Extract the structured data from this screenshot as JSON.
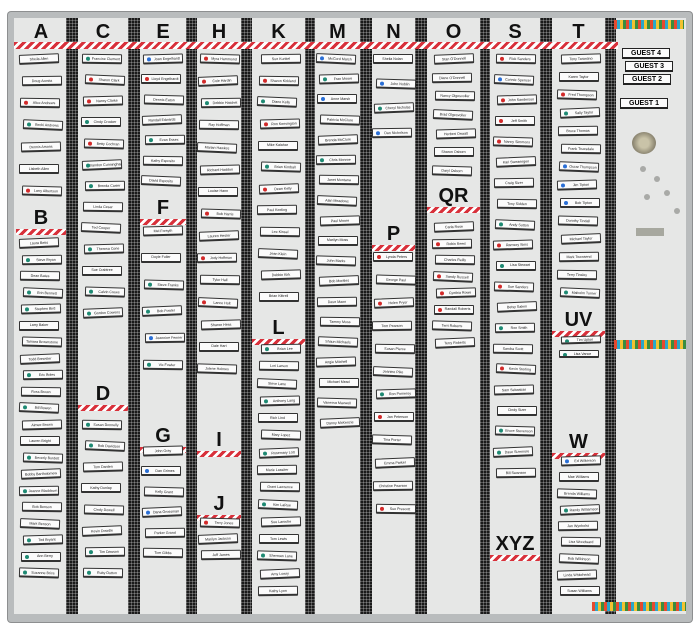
{
  "colors": {
    "red_dot": "#d22a2a",
    "teal_dot": "#1e8a73",
    "blue_dot": "#2a6fd6",
    "tape_red": "#d8313b"
  },
  "columns": [
    {
      "sections": [
        {
          "letter": "A",
          "names": [
            [
              "Sheila Allen",
              ""
            ],
            [
              "Doug Acosta",
              ""
            ],
            [
              "Alice Andrews",
              "red"
            ],
            [
              "Becki Andrews",
              "teal"
            ],
            [
              "Dennis Arsons",
              ""
            ],
            [
              "Lisbeth Allen",
              ""
            ],
            [
              "Larry Albertson",
              "red"
            ]
          ]
        },
        {
          "letter": "B",
          "names": [
            [
              "Laura Betts",
              ""
            ],
            [
              "Steve Bryan",
              "teal"
            ],
            [
              "Dean Bates",
              ""
            ],
            [
              "Erin Bennett",
              "teal"
            ],
            [
              "Stephen Bird",
              "teal"
            ],
            [
              "Larry Baker",
              ""
            ],
            [
              "Tamara Brownstone",
              ""
            ],
            [
              "Todd Brewster",
              ""
            ],
            [
              "Eric Boles",
              "teal"
            ],
            [
              "Ross Brown",
              ""
            ],
            [
              "Bill Bowen",
              "teal"
            ],
            [
              "Aimee Brown",
              ""
            ],
            [
              "Lauren Bright",
              ""
            ],
            [
              "Beverly Burdett",
              "teal"
            ],
            [
              "Bobby Bartholomew",
              ""
            ],
            [
              "Jeanne Blackburn",
              "teal"
            ],
            [
              "Bob Benson",
              ""
            ],
            [
              "Mark Benson",
              ""
            ],
            [
              "Ted Bryant",
              "teal"
            ],
            [
              "Ann Berry",
              "teal"
            ],
            [
              "Suzanne Brice",
              "teal"
            ]
          ]
        }
      ]
    },
    {
      "sections": [
        {
          "letter": "C",
          "names": [
            [
              "Francine Clement",
              "teal"
            ],
            [
              "Sharon Clark",
              "red"
            ],
            [
              "Nancy Clarke",
              "red"
            ],
            [
              "Cindy Crocker",
              "teal"
            ],
            [
              "Betty Cochran",
              "red"
            ],
            [
              "Brandon Cunningham",
              "teal"
            ],
            [
              "Brenda Carter",
              "teal"
            ],
            [
              "Linda Cesar",
              ""
            ],
            [
              "Ted Cooper",
              ""
            ],
            [
              "Theresa Cone",
              "teal"
            ],
            [
              "Sue Crabtree",
              ""
            ],
            [
              "Calvin Crews",
              "teal"
            ],
            [
              "Gordon Cowens",
              "teal"
            ]
          ]
        },
        {
          "letter": "D",
          "names": [
            [
              "Susan Donnelly",
              "teal"
            ],
            [
              "Bob Davidson",
              "teal"
            ],
            [
              "Tom Darden",
              ""
            ],
            [
              "Kathy Dunlap",
              ""
            ],
            [
              "Cindy Dowell",
              ""
            ],
            [
              "Kevin Dowdle",
              ""
            ],
            [
              "Tim Dawson",
              "teal"
            ],
            [
              "Ruby Dutton",
              "teal"
            ]
          ]
        }
      ]
    },
    {
      "sections": [
        {
          "letter": "E",
          "names": [
            [
              "Joan Engelhardt",
              "blue"
            ],
            [
              "Lloyd Engelhardt",
              "red"
            ],
            [
              "Dennis Eaton",
              ""
            ],
            [
              "Randall Edwards",
              ""
            ],
            [
              "Evan Essex",
              "teal"
            ],
            [
              "Kathy Esposito",
              ""
            ],
            [
              "David Esposito",
              ""
            ]
          ]
        },
        {
          "letter": "F",
          "names": [
            [
              "Mel Forsyth",
              ""
            ],
            [
              "Doyle Fuller",
              ""
            ],
            [
              "Steve Franks",
              "teal"
            ],
            [
              "Bob Fowler",
              "teal"
            ],
            [
              "Jeannine Fenner",
              "blue"
            ],
            [
              "Vic Fowler",
              "teal"
            ]
          ]
        },
        {
          "letter": "G",
          "names": [
            [
              "John Gray",
              ""
            ],
            [
              "Dan Grimes",
              "blue"
            ],
            [
              "Kelly Grant",
              ""
            ],
            [
              "Dana Grossman",
              "blue"
            ],
            [
              "Parker Grand",
              ""
            ],
            [
              "Tom Gibbs",
              ""
            ]
          ]
        }
      ]
    },
    {
      "sections": [
        {
          "letter": "H",
          "names": [
            [
              "Myra Hammond",
              "red"
            ],
            [
              "Cole Hardin",
              "red"
            ],
            [
              "Debbie Hatchet",
              "teal"
            ],
            [
              "Ray Hoffman",
              ""
            ],
            [
              "Marian Hawkes",
              ""
            ],
            [
              "Richard Haddon",
              ""
            ],
            [
              "Louise Hann",
              ""
            ],
            [
              "Bob Harris",
              "red"
            ],
            [
              "Lauren Hester",
              ""
            ],
            [
              "Jody Hoffman",
              "red"
            ],
            [
              "Tyler Hall",
              ""
            ],
            [
              "Lance Holt",
              "red"
            ],
            [
              "Sharon Hess",
              ""
            ],
            [
              "Dale Hart",
              ""
            ],
            [
              "Jolene Holmes",
              ""
            ]
          ]
        },
        {
          "letter": "I",
          "names": []
        },
        {
          "letter": "J",
          "names": [
            [
              "Terry Jones",
              "red"
            ],
            [
              "Marilyn Jackson",
              ""
            ],
            [
              "Jeff James",
              ""
            ]
          ]
        }
      ]
    },
    {
      "sections": [
        {
          "letter": "K",
          "names": [
            [
              "Sue Kunkel",
              ""
            ],
            [
              "Sharon Kirkland",
              "red"
            ],
            [
              "Diane Kelly",
              "teal"
            ],
            [
              "Ron Kensington",
              "red"
            ],
            [
              "Mike Kalahar",
              ""
            ],
            [
              "Brian Kimball",
              "teal"
            ],
            [
              "Dean Kelly",
              "red"
            ],
            [
              "Paul Keeling",
              ""
            ],
            [
              "Lee Kinsel",
              ""
            ],
            [
              "Jean Klein",
              ""
            ],
            [
              "Debbie Kirk",
              ""
            ],
            [
              "Brian Kittrell",
              ""
            ]
          ]
        },
        {
          "letter": "L",
          "names": [
            [
              "Brian Lee",
              "teal"
            ],
            [
              "Lori Larson",
              ""
            ],
            [
              "Steve Lane",
              ""
            ],
            [
              "Anthony Lang",
              "teal"
            ],
            [
              "Rich Lind",
              ""
            ],
            [
              "Mary Lopez",
              ""
            ],
            [
              "Rosemary Lott",
              "teal"
            ],
            [
              "Marie Lassiter",
              ""
            ],
            [
              "Grant Lawrence",
              ""
            ],
            [
              "Kim LaRue",
              "teal"
            ],
            [
              "Sue Laroche",
              ""
            ],
            [
              "Tom Lewis",
              ""
            ],
            [
              "Sherman Lane",
              "teal"
            ],
            [
              "Amy Lowry",
              ""
            ],
            [
              "Kathy Lyon",
              ""
            ]
          ]
        }
      ]
    },
    {
      "sections": [
        {
          "letter": "M",
          "names": [
            [
              "McCord Marsh",
              "blue"
            ],
            [
              "Fran Moore",
              "teal"
            ],
            [
              "Anne Marsh",
              "blue"
            ],
            [
              "Patricia McClure",
              ""
            ],
            [
              "Brenda McClure",
              ""
            ],
            [
              "Chris Monroe",
              "teal"
            ],
            [
              "Janet Montana",
              ""
            ],
            [
              "Alan Meadows",
              ""
            ],
            [
              "Paul Moore",
              ""
            ],
            [
              "Marilyn Moss",
              ""
            ],
            [
              "John Marks",
              ""
            ],
            [
              "Bob Morales",
              ""
            ],
            [
              "Dave Mann",
              ""
            ],
            [
              "Tammy Moss",
              ""
            ],
            [
              "Shaun Michaels",
              ""
            ],
            [
              "Angie Mitchell",
              ""
            ],
            [
              "Michael Mead",
              ""
            ],
            [
              "Vanessa Maxwell",
              ""
            ],
            [
              "Danny McKenzie",
              ""
            ]
          ]
        }
      ]
    },
    {
      "sections": [
        {
          "letter": "N",
          "names": [
            [
              "Sheila Nolan",
              ""
            ],
            [
              "John Noblin",
              "blue"
            ],
            [
              "Cheryl Nicholas",
              "teal"
            ],
            [
              "Dan Nicholson",
              "blue"
            ]
          ]
        },
        {
          "letter": "P",
          "names": [
            [
              "Lynda Peters",
              "red"
            ],
            [
              "George Paul",
              ""
            ],
            [
              "Helen Pryor",
              "red"
            ],
            [
              "Tom Pearson",
              ""
            ],
            [
              "Susan Pierce",
              ""
            ],
            [
              "Jeanine Pike",
              ""
            ],
            [
              "Ron Pomeroy",
              "teal"
            ],
            [
              "Jan Peterson",
              "red"
            ],
            [
              "Tina Porter",
              ""
            ],
            [
              "Emma Parker",
              ""
            ],
            [
              "Christine Pearson",
              ""
            ],
            [
              "Sue Prescott",
              "red"
            ]
          ]
        }
      ]
    },
    {
      "sections": [
        {
          "letter": "O",
          "names": [
            [
              "Stan O'Donnell",
              ""
            ],
            [
              "Diane O'Donnell",
              ""
            ],
            [
              "Nancy Olgesvoller",
              ""
            ],
            [
              "Brad Olgesvoller",
              ""
            ],
            [
              "Herbert Oswalt",
              ""
            ],
            [
              "Sharon Osborn",
              ""
            ],
            [
              "Daryl Osborn",
              ""
            ]
          ]
        },
        {
          "letter": "QR",
          "names": [
            [
              "Carla Rose",
              ""
            ],
            [
              "Robin Reed",
              "red"
            ],
            [
              "Charles Reilly",
              ""
            ],
            [
              "Sandy Russell",
              "red"
            ],
            [
              "Cynthia Rowe",
              "red"
            ],
            [
              "Randall Roberts",
              "red"
            ],
            [
              "Terri Roberts",
              ""
            ],
            [
              "Terry Roberts",
              ""
            ]
          ]
        }
      ]
    },
    {
      "sections": [
        {
          "letter": "S",
          "names": [
            [
              "Rick Sanders",
              "red"
            ],
            [
              "Connie Spencer",
              "blue"
            ],
            [
              "John Sanderson",
              "red"
            ],
            [
              "Jeff Smith",
              "red"
            ],
            [
              "Nancy Simmons",
              "red"
            ],
            [
              "Kari Swearingen",
              ""
            ],
            [
              "Craig Sizer",
              ""
            ],
            [
              "Tony Sidden",
              ""
            ],
            [
              "Andy Sutton",
              "teal"
            ],
            [
              "Ramsey Sims",
              "red"
            ],
            [
              "Lisa Stewart",
              "teal"
            ],
            [
              "Sue Sanders",
              "red"
            ],
            [
              "Betsy Salem",
              ""
            ],
            [
              "Ron Smith",
              "teal"
            ],
            [
              "Sandra Scott",
              ""
            ],
            [
              "Kevin Sterling",
              "red"
            ],
            [
              "Sam Sebastian",
              ""
            ],
            [
              "Cindy Sizer",
              ""
            ],
            [
              "Bruce Stevenson",
              "teal"
            ],
            [
              "Dave Sizemore",
              "teal"
            ],
            [
              "Bill Swanson",
              ""
            ]
          ]
        },
        {
          "letter": "XYZ",
          "names": []
        }
      ]
    },
    {
      "sections": [
        {
          "letter": "T",
          "names": [
            [
              "Tony Tarantino",
              ""
            ],
            [
              "Karen Taylor",
              ""
            ],
            [
              "Fred Thompson",
              "red"
            ],
            [
              "Sally Taylor",
              "teal"
            ],
            [
              "Bruce Thomas",
              ""
            ],
            [
              "Frank Truesdale",
              ""
            ],
            [
              "Oscar Thompson",
              "blue"
            ],
            [
              "Jim Tipton",
              "blue"
            ],
            [
              "Bob Tipton",
              "blue"
            ],
            [
              "Dorothy Tindall",
              ""
            ],
            [
              "Michael Taylor",
              ""
            ],
            [
              "Mark Townsend",
              ""
            ],
            [
              "Terry Tinsley",
              ""
            ],
            [
              "Malcolm Turner",
              "teal"
            ]
          ]
        },
        {
          "letter": "UV",
          "names": [
            [
              "Tim Upton",
              "teal"
            ],
            [
              "Lisa Vance",
              "teal"
            ]
          ]
        },
        {
          "letter": "W",
          "names": [
            [
              "Ed Wilkerson",
              "blue"
            ],
            [
              "Mae Williams",
              ""
            ],
            [
              "Brenda Williams",
              ""
            ],
            [
              "Randy Williamson",
              "teal"
            ],
            [
              "Jan Wynholst",
              ""
            ],
            [
              "Lisa Woodward",
              ""
            ],
            [
              "Bob Wilkinson",
              ""
            ],
            [
              "Linda Whitehead",
              ""
            ],
            [
              "Susan Williams",
              ""
            ]
          ]
        }
      ]
    }
  ],
  "guests": [
    "GUEST 4",
    "GUEST 3",
    "GUEST 2",
    "GUEST 1"
  ]
}
